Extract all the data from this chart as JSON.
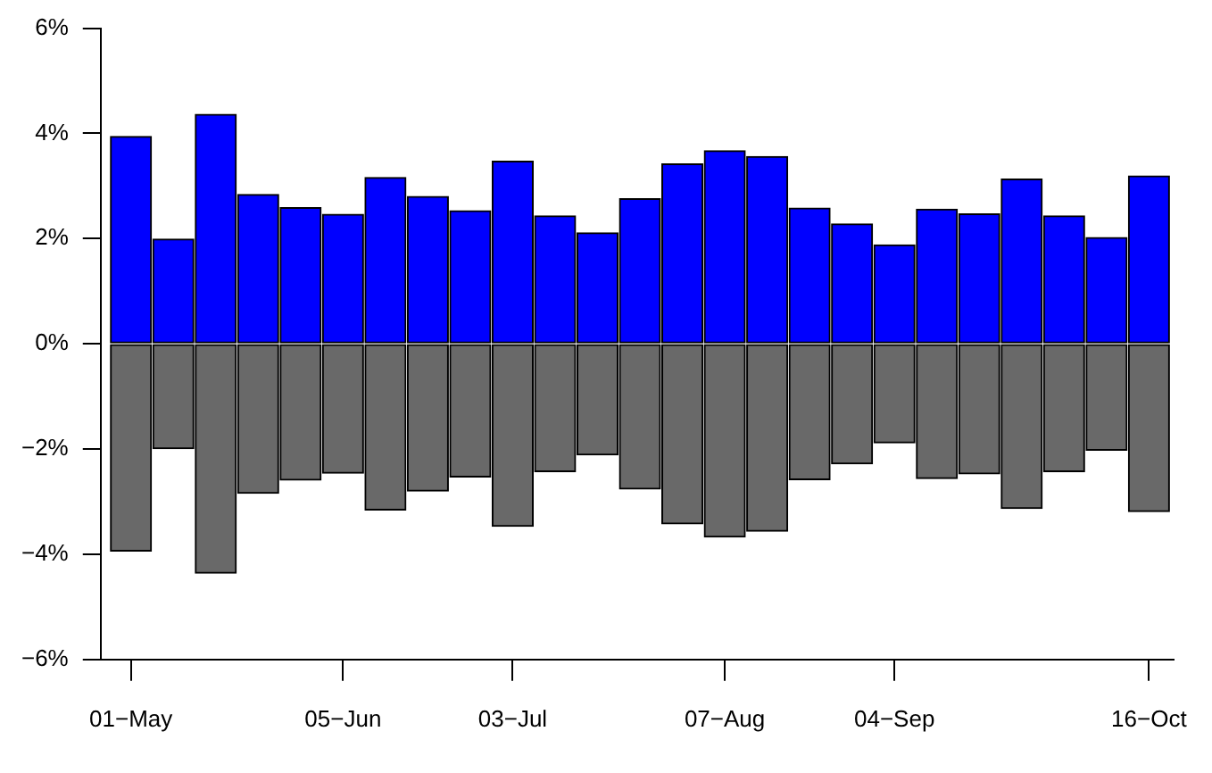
{
  "chart_data": {
    "type": "bar",
    "stacked": true,
    "grid": false,
    "legend": false,
    "x": [
      "--05-01",
      "--05-08",
      "--05-15",
      "--05-22",
      "--05-29",
      "--06-05",
      "--06-12",
      "--06-19",
      "--06-26",
      "--07-03",
      "--07-10",
      "--07-17",
      "--07-24",
      "--07-31",
      "--08-07",
      "--08-14",
      "--08-21",
      "--08-28",
      "--09-04",
      "--09-11",
      "--09-18",
      "--09-25",
      "--10-02",
      "--10-09",
      "--10-16"
    ],
    "series": [
      {
        "color": "#0000ff",
        "values": [
          3.94,
          1.99,
          4.36,
          2.84,
          2.59,
          2.46,
          3.16,
          2.8,
          2.53,
          3.47,
          2.43,
          2.11,
          2.76,
          3.42,
          3.67,
          3.56,
          2.58,
          2.28,
          1.88,
          2.56,
          2.47,
          3.13,
          2.43,
          2.02,
          3.19
        ]
      },
      {
        "color": "#696969",
        "values": [
          -3.94,
          -1.99,
          -4.36,
          -2.84,
          -2.59,
          -2.46,
          -3.16,
          -2.8,
          -2.53,
          -3.47,
          -2.43,
          -2.11,
          -2.76,
          -3.42,
          -3.67,
          -3.56,
          -2.58,
          -2.28,
          -1.88,
          -2.56,
          -2.47,
          -3.13,
          -2.43,
          -2.02,
          -3.19
        ]
      }
    ],
    "xlim": [
      "--04-26",
      "--10-20"
    ],
    "xticks": [
      {
        "value": "--05-01",
        "label": "01−May"
      },
      {
        "value": "--06-05",
        "label": "05−Jun"
      },
      {
        "value": "--07-03",
        "label": "03−Jul"
      },
      {
        "value": "--08-07",
        "label": "07−Aug"
      },
      {
        "value": "--09-04",
        "label": "04−Sep"
      },
      {
        "value": "--10-16",
        "label": "16−Oct"
      }
    ],
    "ylim": [
      -6,
      6
    ],
    "yticks": [
      {
        "value": -6,
        "label": "−6%"
      },
      {
        "value": -4,
        "label": "−4%"
      },
      {
        "value": -2,
        "label": "−2%"
      },
      {
        "value": 0,
        "label": "0%"
      },
      {
        "value": 2,
        "label": "2%"
      },
      {
        "value": 4,
        "label": "4%"
      },
      {
        "value": 6,
        "label": "6%"
      }
    ]
  }
}
